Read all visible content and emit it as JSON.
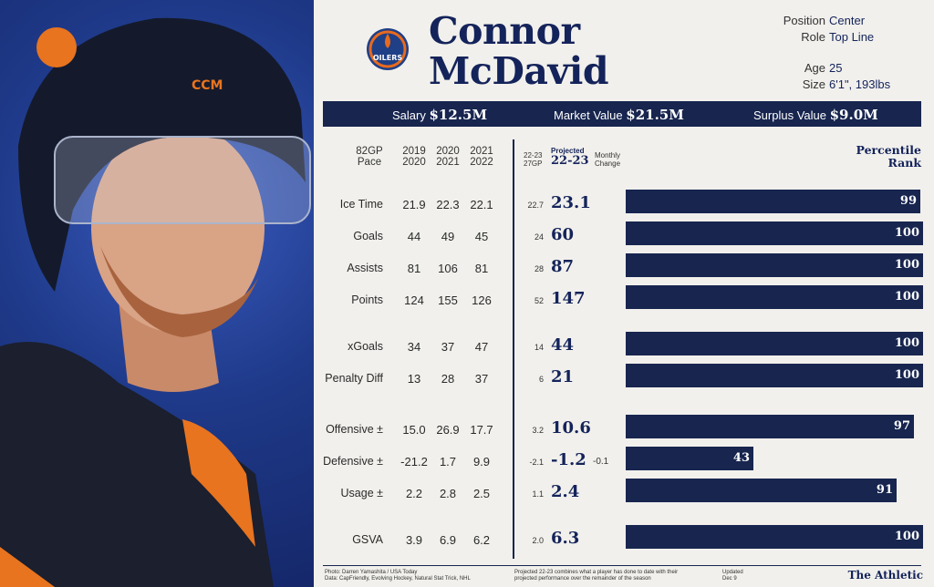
{
  "player": {
    "first_name": "Connor",
    "last_name": "McDavid"
  },
  "info": {
    "position_label": "Position",
    "position": "Center",
    "role_label": "Role",
    "role": "Top Line",
    "age_label": "Age",
    "age": "25",
    "size_label": "Size",
    "size": "6'1\", 193lbs"
  },
  "value": {
    "salary_label": "Salary",
    "salary": "$12.5M",
    "market_label": "Market Value",
    "market": "$21.5M",
    "surplus_label": "Surplus Value",
    "surplus": "$9.0M"
  },
  "logo": {
    "text": "OILERS",
    "colors": {
      "navy": "#1f3f86",
      "orange": "#e86a1e"
    }
  },
  "headers": {
    "pace": [
      "82GP",
      "Pace"
    ],
    "s1": [
      "2019",
      "2020"
    ],
    "s2": [
      "2020",
      "2021"
    ],
    "s3": [
      "2021",
      "2022"
    ],
    "season_pace": [
      "22-23",
      "27GP"
    ],
    "projected": [
      "Projected",
      "22-23"
    ],
    "monthly": [
      "Monthly",
      "Change"
    ],
    "percentile": [
      "Percentile",
      "Rank"
    ]
  },
  "rows": [
    {
      "label": "Ice Time",
      "s1": "21.9",
      "s2": "22.3",
      "s3": "22.1",
      "pace": "22.7",
      "proj": "23.1",
      "change": "",
      "pct": 99
    },
    {
      "label": "Goals",
      "s1": "44",
      "s2": "49",
      "s3": "45",
      "pace": "24",
      "proj": "60",
      "change": "",
      "pct": 100
    },
    {
      "label": "Assists",
      "s1": "81",
      "s2": "106",
      "s3": "81",
      "pace": "28",
      "proj": "87",
      "change": "",
      "pct": 100
    },
    {
      "label": "Points",
      "s1": "124",
      "s2": "155",
      "s3": "126",
      "pace": "52",
      "proj": "147",
      "change": "",
      "pct": 100
    },
    {
      "label": "xGoals",
      "s1": "34",
      "s2": "37",
      "s3": "47",
      "pace": "14",
      "proj": "44",
      "change": "",
      "pct": 100
    },
    {
      "label": "Penalty Diff",
      "s1": "13",
      "s2": "28",
      "s3": "37",
      "pace": "6",
      "proj": "21",
      "change": "",
      "pct": 100
    },
    {
      "label": "Offensive ±",
      "s1": "15.0",
      "s2": "26.9",
      "s3": "17.7",
      "pace": "3.2",
      "proj": "10.6",
      "change": "",
      "pct": 97
    },
    {
      "label": "Defensive ±",
      "s1": "-21.2",
      "s2": "1.7",
      "s3": "9.9",
      "pace": "-2.1",
      "proj": "-1.2",
      "change": "-0.1",
      "pct": 43
    },
    {
      "label": "Usage ±",
      "s1": "2.2",
      "s2": "2.8",
      "s3": "2.5",
      "pace": "1.1",
      "proj": "2.4",
      "change": "",
      "pct": 91
    },
    {
      "label": "GSVA",
      "s1": "3.9",
      "s2": "6.9",
      "s3": "6.2",
      "pace": "2.0",
      "proj": "6.3",
      "change": "",
      "pct": 100
    }
  ],
  "footer": {
    "photo": "Photo: Darren Yamashita / USA Today",
    "data": "Data: CapFriendly, Evolving Hockey, Natural Stat Trick, NHL",
    "note1": "Projected 22-23 combines what a player has done to date with their",
    "note2": "projected performance over the remainder of the season",
    "updated_label": "Updated",
    "updated": "Dec 9",
    "brand": "The Athletic"
  }
}
